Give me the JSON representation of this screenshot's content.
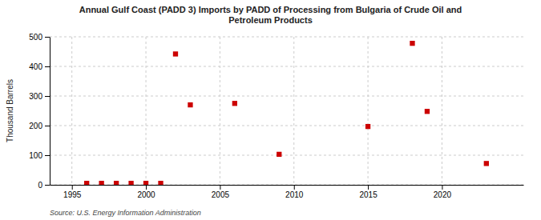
{
  "chart_data": {
    "type": "scatter",
    "title": "Annual Gulf Coast (PADD 3) Imports by PADD of Processing from Bulgaria of Crude Oil and\nPetroleum Products",
    "y_label": "Thousand Barrels",
    "annotations": [
      "Source: U.S. Energy Information Administration"
    ],
    "x": [
      1996,
      1997,
      1998,
      1999,
      2000,
      2001,
      2002,
      2003,
      2006,
      2009,
      2015,
      2018,
      2019,
      2023
    ],
    "values": [
      5,
      5,
      5,
      5,
      5,
      5,
      442,
      270,
      275,
      103,
      197,
      478,
      248,
      72
    ],
    "color": "#cc0000",
    "marker": "square",
    "xlim": [
      1993.5,
      2025.5
    ],
    "ylim": [
      0,
      500
    ],
    "xticks": [
      1995,
      2000,
      2005,
      2010,
      2015,
      2020
    ],
    "yticks": [
      0,
      100,
      200,
      300,
      400,
      500
    ],
    "grid": true
  }
}
